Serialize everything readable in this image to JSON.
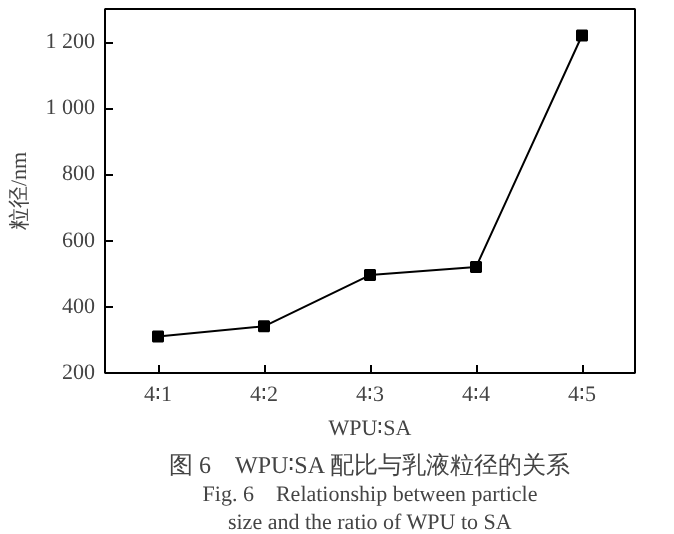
{
  "chart_data": {
    "type": "line",
    "xlabel": "WPU∶SA",
    "ylabel": "粒径/nm",
    "categories": [
      "4∶1",
      "4∶2",
      "4∶3",
      "4∶4",
      "4∶5"
    ],
    "series": [
      {
        "color": "#000000",
        "values": [
          310,
          341,
          496,
          520,
          1220
        ]
      }
    ],
    "ylim": [
      200,
      1300
    ],
    "yticks": [
      200,
      400,
      600,
      800,
      {
        "value": 1000,
        "label": "1 000"
      },
      {
        "value": 1200,
        "label": "1 200"
      }
    ],
    "marker": "square",
    "line_style": "solid",
    "grid": false,
    "annotations": [
      "图 6　WPU∶SA 配比与乳液粒径的关系",
      "Fig. 6　Relationship between particle",
      "size and the ratio of WPU to SA"
    ]
  }
}
